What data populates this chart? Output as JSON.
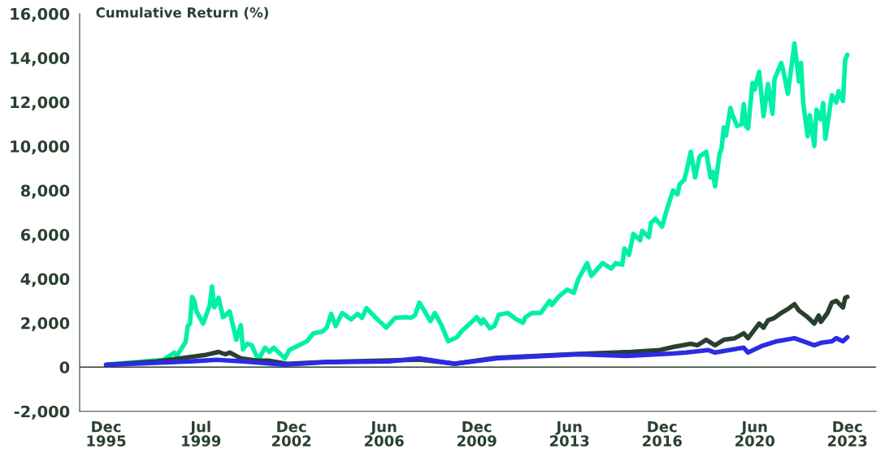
{
  "chart_data": {
    "type": "line",
    "ylabel": "Cumulative Return (%)",
    "xlim": [
      "1994-12",
      "2025-01"
    ],
    "xticks": [
      {
        "value": "1995-12",
        "label": "Dec\n1995"
      },
      {
        "value": "1999-07",
        "label": "Jul\n1999"
      },
      {
        "value": "2002-12",
        "label": "Dec\n2002"
      },
      {
        "value": "2006-06",
        "label": "Jun\n2006"
      },
      {
        "value": "2009-12",
        "label": "Dec\n2009"
      },
      {
        "value": "2013-06",
        "label": "Jun\n2013"
      },
      {
        "value": "2016-12",
        "label": "Dec\n2016"
      },
      {
        "value": "2020-06",
        "label": "Jun\n2020"
      },
      {
        "value": "2023-12",
        "label": "Dec\n2023"
      }
    ],
    "ylim": [
      -2000,
      16000
    ],
    "yticks": [
      {
        "value": -2000,
        "label": "-2,000"
      },
      0,
      {
        "value": 2000,
        "label": "2,000"
      },
      {
        "value": 4000,
        "label": "4,000"
      },
      {
        "value": 6000,
        "label": "6,000"
      },
      {
        "value": 8000,
        "label": "8,000"
      },
      {
        "value": 10000,
        "label": "10,000"
      },
      {
        "value": 12000,
        "label": "12,000"
      },
      {
        "value": 14000,
        "label": "14,000"
      },
      {
        "value": 16000,
        "label": "16,000"
      }
    ],
    "grid": false,
    "legend": false,
    "ref_lines": [
      {
        "axis": "y",
        "value": 0,
        "color": "#29402f"
      }
    ],
    "series": [
      {
        "color": "#00f0a8",
        "x": [
          "1995-12",
          "1998-02",
          "1998-07",
          "1998-08",
          "1998-12",
          "1999-01",
          "1999-02",
          "1999-03",
          "1999-04",
          "1999-05",
          "1999-08",
          "1999-11",
          "1999-12",
          "2000-01",
          "2000-03",
          "2000-05",
          "2000-08",
          "2000-11",
          "2001-01",
          "2001-02",
          "2001-04",
          "2001-06",
          "2001-09",
          "2001-12",
          "2002-02",
          "2002-04",
          "2002-09",
          "2002-11",
          "2003-07",
          "2003-10",
          "2004-02",
          "2004-04",
          "2004-06",
          "2004-08",
          "2004-11",
          "2005-03",
          "2005-06",
          "2005-08",
          "2005-10",
          "2006-03",
          "2006-07",
          "2006-11",
          "2007-04",
          "2007-06",
          "2007-08",
          "2007-10",
          "2007-12",
          "2008-03",
          "2008-05",
          "2008-08",
          "2008-11",
          "2009-03",
          "2009-05",
          "2009-12",
          "2010-02",
          "2010-03",
          "2010-06",
          "2010-08",
          "2010-10",
          "2011-02",
          "2011-06",
          "2011-09",
          "2011-10",
          "2012-01",
          "2012-05",
          "2012-09",
          "2012-10",
          "2013-01",
          "2013-05",
          "2013-08",
          "2013-10",
          "2014-02",
          "2014-04",
          "2014-09",
          "2015-01",
          "2015-03",
          "2015-06",
          "2015-07",
          "2015-09",
          "2015-11",
          "2016-02",
          "2016-03",
          "2016-06",
          "2016-07",
          "2016-09",
          "2016-12",
          "2017-02",
          "2017-05",
          "2017-07",
          "2017-08",
          "2017-10",
          "2017-11",
          "2018-01",
          "2018-03",
          "2018-05",
          "2018-08",
          "2018-10",
          "2018-11",
          "2018-12",
          "2019-02",
          "2019-03",
          "2019-04",
          "2019-05",
          "2019-07",
          "2019-08",
          "2019-10",
          "2019-12",
          "2020-01",
          "2020-02",
          "2020-03",
          "2020-05",
          "2020-06",
          "2020-08",
          "2020-10",
          "2020-12",
          "2021-02",
          "2021-03",
          "2021-06",
          "2021-07",
          "2021-09",
          "2021-12",
          "2022-02",
          "2022-03",
          "2022-04",
          "2022-06",
          "2022-07",
          "2022-09",
          "2022-10",
          "2022-12",
          "2023-01",
          "2023-02",
          "2023-05",
          "2023-07",
          "2023-08",
          "2023-10",
          "2023-11",
          "2023-12"
        ],
        "values": [
          110,
          330,
          660,
          510,
          1130,
          1860,
          1970,
          3180,
          3000,
          2520,
          1970,
          2810,
          3650,
          2700,
          3140,
          2260,
          2520,
          1240,
          1900,
          800,
          1060,
          990,
          330,
          880,
          690,
          880,
          400,
          770,
          1170,
          1530,
          1610,
          1790,
          2410,
          1860,
          2450,
          2160,
          2410,
          2230,
          2670,
          2160,
          1790,
          2230,
          2260,
          2230,
          2340,
          2920,
          2590,
          2080,
          2450,
          1900,
          1170,
          1350,
          1610,
          2260,
          1970,
          2160,
          1750,
          1860,
          2370,
          2450,
          2160,
          2010,
          2260,
          2450,
          2450,
          3000,
          2810,
          3180,
          3510,
          3360,
          3980,
          4710,
          4130,
          4710,
          4460,
          4710,
          4640,
          5370,
          5080,
          6030,
          5740,
          6170,
          5880,
          6540,
          6720,
          6360,
          7090,
          8000,
          7820,
          8290,
          8470,
          8840,
          9750,
          8580,
          9530,
          9750,
          8580,
          8840,
          8180,
          9640,
          9900,
          10850,
          10480,
          11730,
          11400,
          10920,
          10990,
          11910,
          10920,
          10810,
          12860,
          12570,
          13370,
          11360,
          12820,
          11470,
          13040,
          13770,
          13410,
          12380,
          14650,
          12930,
          13770,
          11950,
          10450,
          11400,
          10010,
          11650,
          11220,
          11950,
          10340,
          12310,
          11980,
          12490,
          12050,
          13920,
          14140
        ]
      },
      {
        "color": "#29402f",
        "x": [
          "1995-12",
          "1997-11",
          "1999-01",
          "1999-09",
          "2000-03",
          "2000-06",
          "2000-08",
          "2001-01",
          "2001-09",
          "2002-02",
          "2002-10",
          "2004-03",
          "2007-10",
          "2009-02",
          "2010-09",
          "2013-10",
          "2015-10",
          "2016-11",
          "2017-05",
          "2018-01",
          "2018-04",
          "2018-08",
          "2018-12",
          "2019-04",
          "2019-09",
          "2020-01",
          "2020-03",
          "2020-08",
          "2020-10",
          "2020-12",
          "2021-03",
          "2021-06",
          "2021-09",
          "2021-12",
          "2022-02",
          "2022-06",
          "2022-09",
          "2022-11",
          "2022-12",
          "2023-03",
          "2023-05",
          "2023-07",
          "2023-10",
          "2023-11",
          "2023-12"
        ],
        "values": [
          100,
          260,
          440,
          550,
          690,
          580,
          660,
          400,
          290,
          290,
          150,
          230,
          340,
          160,
          420,
          600,
          690,
          770,
          910,
          1060,
          990,
          1240,
          990,
          1240,
          1310,
          1530,
          1310,
          1970,
          1790,
          2120,
          2230,
          2450,
          2630,
          2850,
          2560,
          2260,
          1970,
          2340,
          2050,
          2450,
          2920,
          3000,
          2700,
          3140,
          3180
        ]
      },
      {
        "color": "#2b2be6",
        "x": [
          "1995-12",
          "1999-02",
          "2000-02",
          "2001-02",
          "2002-09",
          "2004-03",
          "2006-08",
          "2007-10",
          "2009-02",
          "2010-09",
          "2013-10",
          "2015-08",
          "2017-05",
          "2017-11",
          "2018-09",
          "2018-12",
          "2020-01",
          "2020-03",
          "2020-09",
          "2021-04",
          "2021-12",
          "2022-06",
          "2022-09",
          "2022-12",
          "2023-05",
          "2023-07",
          "2023-10",
          "2023-12"
        ],
        "values": [
          100,
          260,
          330,
          260,
          110,
          220,
          260,
          400,
          150,
          400,
          580,
          510,
          620,
          660,
          770,
          660,
          880,
          660,
          950,
          1170,
          1310,
          1100,
          990,
          1100,
          1170,
          1310,
          1170,
          1350
        ]
      }
    ]
  }
}
